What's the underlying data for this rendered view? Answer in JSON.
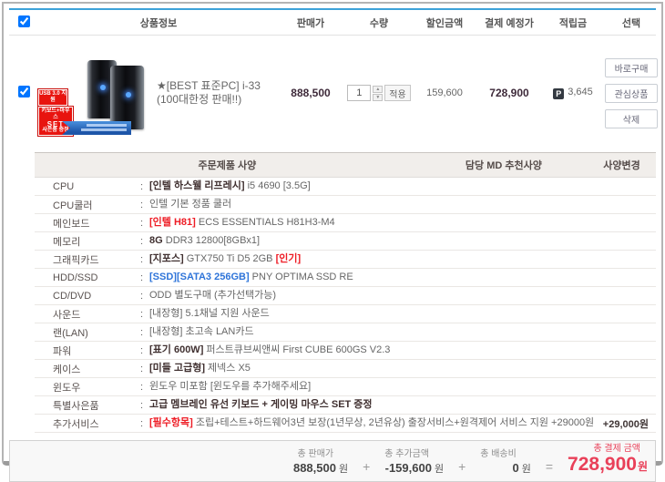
{
  "colors": {
    "top_accent_line": "#3da2d9",
    "price_text": "#3e2a3a",
    "highlight_red": "#ee1c25",
    "option_blue": "#2e74d9",
    "total_red": "#e94059",
    "badge_red": "#e8140f",
    "ribbon_blue": "#1d55a8"
  },
  "cart": {
    "select_all_checked": true,
    "columns": [
      "상품정보",
      "판매가",
      "수량",
      "할인금액",
      "결제 예정가",
      "적립금",
      "선택"
    ],
    "item": {
      "checked": true,
      "name": "★[BEST 표준PC] i-33 (100대한정 판매!!)",
      "price": "888,500",
      "quantity": "1",
      "apply_label": "적용",
      "discount": "159,600",
      "payment": "728,900",
      "points_icon": "P",
      "points": "3,645",
      "badges": {
        "usb": "USB 3.0 지원",
        "set_top": "키보드+마우스",
        "set_mid": "SET",
        "set_bottom": "사은품 증정"
      },
      "actions": [
        "바로구매",
        "관심상품",
        "삭제"
      ]
    }
  },
  "spec": {
    "colon": ":",
    "headers": {
      "left": "주문제품 사양",
      "middle": "담당 MD 추천사양",
      "right": "사양변경"
    },
    "rows": [
      {
        "label": "CPU",
        "segments": [
          {
            "t": "[인텔 하스웰 리프레시]",
            "s": "bold"
          },
          {
            "t": " i5 4690 [3.5G]",
            "s": "normal"
          }
        ]
      },
      {
        "label": "CPU쿨러",
        "segments": [
          {
            "t": "인텔 기본 정품 쿨러",
            "s": "normal"
          }
        ]
      },
      {
        "label": "메인보드",
        "segments": [
          {
            "t": "[인텔 H81]",
            "s": "red"
          },
          {
            "t": " ECS ESSENTIALS H81H3-M4",
            "s": "normal"
          }
        ]
      },
      {
        "label": "메모리",
        "segments": [
          {
            "t": "8G",
            "s": "bold"
          },
          {
            "t": " DDR3 12800[8GBx1]",
            "s": "normal"
          }
        ]
      },
      {
        "label": "그래픽카드",
        "segments": [
          {
            "t": "[지포스]",
            "s": "bold"
          },
          {
            "t": " GTX750 Ti D5 2GB ",
            "s": "normal"
          },
          {
            "t": "[인기]",
            "s": "red"
          }
        ]
      },
      {
        "label": "HDD/SSD",
        "segments": [
          {
            "t": "[SSD][SATA3 256GB]",
            "s": "blue"
          },
          {
            "t": " PNY OPTIMA SSD RE",
            "s": "normal"
          }
        ]
      },
      {
        "label": "CD/DVD",
        "segments": [
          {
            "t": "ODD 별도구매 (추가선택가능)",
            "s": "normal"
          }
        ]
      },
      {
        "label": "사운드",
        "segments": [
          {
            "t": "[내장형] 5.1채널 지원 사운드",
            "s": "normal"
          }
        ]
      },
      {
        "label": "랜(LAN)",
        "segments": [
          {
            "t": "[내장형] 초고속 LAN카드",
            "s": "normal"
          }
        ]
      },
      {
        "label": "파워",
        "segments": [
          {
            "t": "[표기 600W]",
            "s": "bold"
          },
          {
            "t": " 퍼스트큐브씨앤씨 First CUBE 600GS V2.3",
            "s": "normal"
          }
        ]
      },
      {
        "label": "케이스",
        "segments": [
          {
            "t": "[미들 고급형]",
            "s": "bold"
          },
          {
            "t": " 제넥스 X5",
            "s": "normal"
          }
        ]
      },
      {
        "label": "윈도우",
        "segments": [
          {
            "t": "윈도우 미포함 [윈도우를 추가해주세요]",
            "s": "normal"
          }
        ]
      },
      {
        "label": "특별사은품",
        "segments": [
          {
            "t": "고급 멤브레인 유선 키보드 + 게이밍 마우스 SET 증정",
            "s": "bold"
          }
        ]
      },
      {
        "label": "추가서비스",
        "tall": true,
        "extra": "+29,000원",
        "segments": [
          {
            "t": "[필수항목]",
            "s": "red"
          },
          {
            "t": " 조립+테스트+하드웨어3년 보장(1년무상, 2년유상) 출장서비스+원격제어 서비스 지원 +29000원",
            "s": "normal"
          }
        ]
      }
    ]
  },
  "summary": {
    "items": [
      {
        "label": "총 판매가",
        "value": "888,500",
        "unit": "원",
        "highlight": false
      },
      {
        "label": "총 추가금액",
        "value": "-159,600",
        "unit": "원",
        "highlight": false
      },
      {
        "label": "총 배송비",
        "value": "0",
        "unit": "원",
        "highlight": false
      },
      {
        "label": "총 결제 금액",
        "value": "728,900",
        "unit": "원",
        "highlight": true
      }
    ],
    "operators": [
      "+",
      "+",
      "="
    ]
  }
}
